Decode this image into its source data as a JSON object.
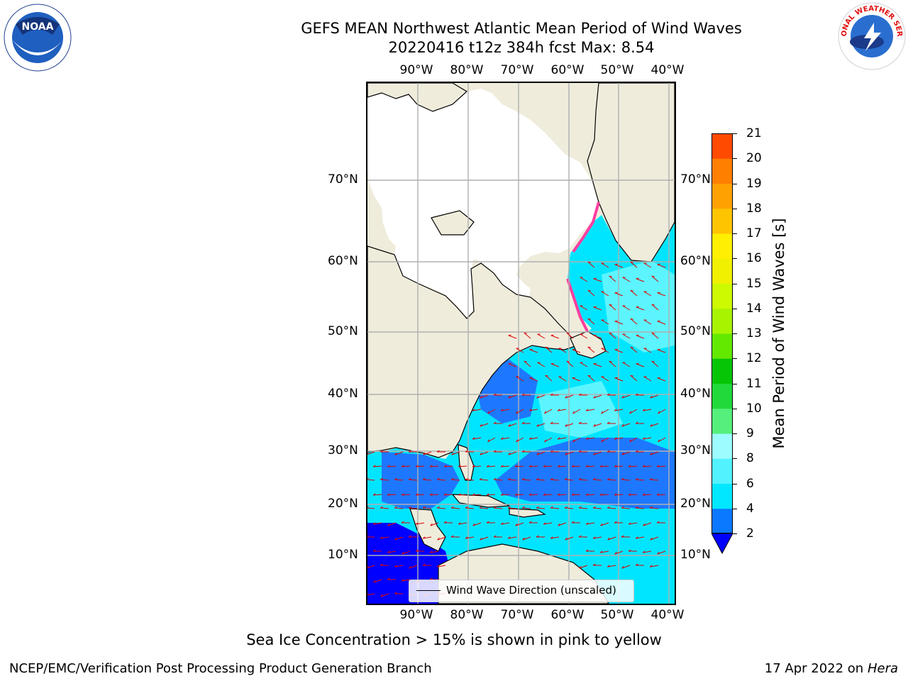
{
  "header": {
    "title_line1": "GEFS MEAN Northwest Atlantic Mean Period of Wind Waves",
    "title_line2": "20220416 t12z 384h fcst   Max: 8.54"
  },
  "logos": {
    "left": "NOAA",
    "right": "NATIONAL WEATHER SERVICE"
  },
  "map": {
    "lon_ticks": [
      "90°W",
      "80°W",
      "70°W",
      "60°W",
      "50°W",
      "40°W"
    ],
    "lat_ticks": [
      "70°N",
      "60°N",
      "50°N",
      "40°N",
      "30°N",
      "20°N",
      "10°N"
    ],
    "legend_label": "Wind Wave Direction (unscaled)",
    "colors": {
      "land": "#efecdc",
      "ice_free_land": "#ffffff",
      "period_2_4": "#1e78ff",
      "period_4_6": "#00e5ff",
      "period_6_8": "#5cf5ff",
      "period_below_2": "#0000ff",
      "ice": "#ff3fa0",
      "arrows": "#e00000"
    }
  },
  "colorbar": {
    "title": "Mean Period of Wind Waves [s]",
    "levels": [
      "2",
      "4",
      "6",
      "8",
      "9",
      "10",
      "11",
      "12",
      "13",
      "14",
      "15",
      "16",
      "17",
      "18",
      "19",
      "20",
      "21"
    ],
    "colors": [
      "#0a78ff",
      "#00e7ff",
      "#52f2ff",
      "#9dfcff",
      "#55f07c",
      "#22d93c",
      "#06c406",
      "#63e800",
      "#a8f400",
      "#cdfa00",
      "#f0f000",
      "#ffef00",
      "#ffc400",
      "#ffa100",
      "#ff7f00",
      "#ff4a00",
      "#ff1a00"
    ],
    "extend_color": "#0000ff"
  },
  "caption": "Sea Ice Concentration > 15% is shown in pink to yellow",
  "footer": {
    "left": "NCEP/EMC/Verification Post Processing Product Generation Branch",
    "right_date": "17 Apr 2022 on",
    "right_host": "Hera"
  }
}
